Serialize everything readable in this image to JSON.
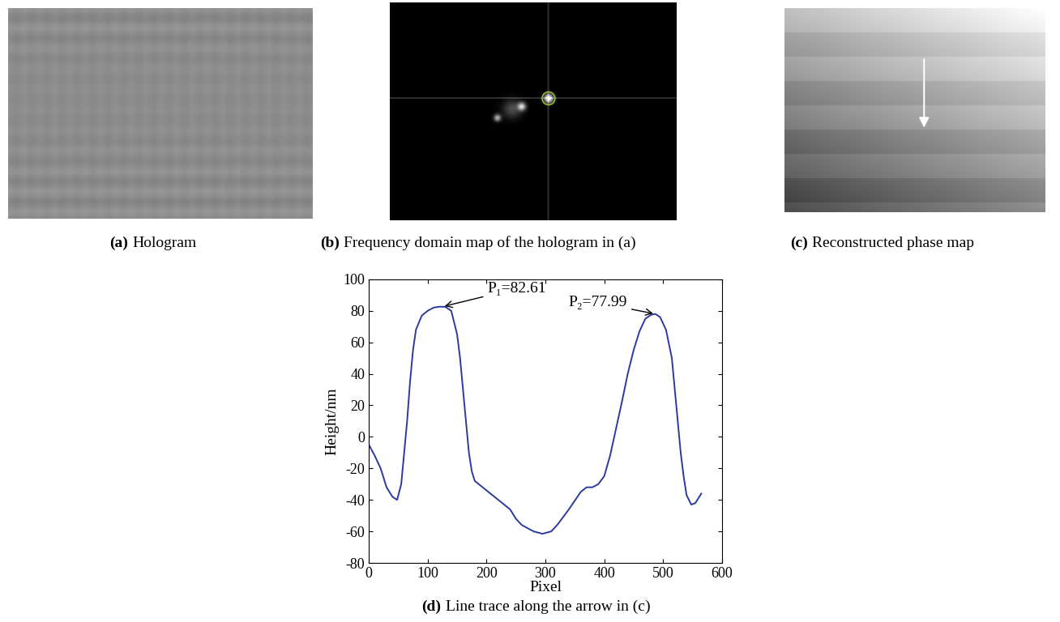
{
  "panels": [
    {
      "label": "(a)",
      "caption": "Hologram"
    },
    {
      "label": "(b)",
      "caption": "Frequency domain map of the hologram in (a)"
    },
    {
      "label": "(c)",
      "caption": "Reconstructed phase map"
    }
  ],
  "chart_data": {
    "type": "line",
    "label": "(d)",
    "caption": "Line trace along the arrow in (c)",
    "x_label": "Pixel",
    "y_label": "Height/nm",
    "x": [
      0,
      10,
      20,
      30,
      40,
      48,
      55,
      60,
      65,
      70,
      75,
      80,
      90,
      100,
      110,
      120,
      130,
      140,
      150,
      155,
      160,
      165,
      170,
      175,
      180,
      190,
      200,
      220,
      240,
      250,
      260,
      280,
      295,
      310,
      320,
      340,
      360,
      370,
      380,
      390,
      400,
      410,
      420,
      430,
      440,
      450,
      460,
      470,
      480,
      487,
      495,
      505,
      515,
      520,
      525,
      530,
      535,
      540,
      548,
      555,
      565
    ],
    "values": [
      -5,
      -12,
      -20,
      -32,
      -38,
      -40,
      -30,
      -10,
      10,
      35,
      55,
      68,
      77,
      80,
      82,
      82.6,
      82.5,
      80,
      65,
      50,
      30,
      10,
      -10,
      -22,
      -28,
      -31,
      -34,
      -40,
      -46,
      -52,
      -56,
      -60,
      -61.5,
      -60,
      -56,
      -46,
      -35,
      -32,
      -32,
      -30,
      -25,
      -12,
      5,
      22,
      40,
      55,
      67,
      75,
      77.5,
      78,
      76,
      68,
      50,
      30,
      10,
      -10,
      -25,
      -37,
      -43,
      -42,
      -36
    ],
    "color": "#2b3a9e",
    "xlim": [
      0,
      600
    ],
    "xticks": [
      0,
      100,
      200,
      300,
      400,
      500,
      600
    ],
    "ylim": [
      -80,
      100
    ],
    "yticks": [
      -80,
      -60,
      -40,
      -20,
      0,
      20,
      40,
      60,
      80,
      100
    ],
    "annotations": [
      {
        "text": "P₁=82.61",
        "x": 125,
        "y": 82.61
      },
      {
        "text": "P₂=77.99",
        "x": 487,
        "y": 77.99
      }
    ]
  }
}
